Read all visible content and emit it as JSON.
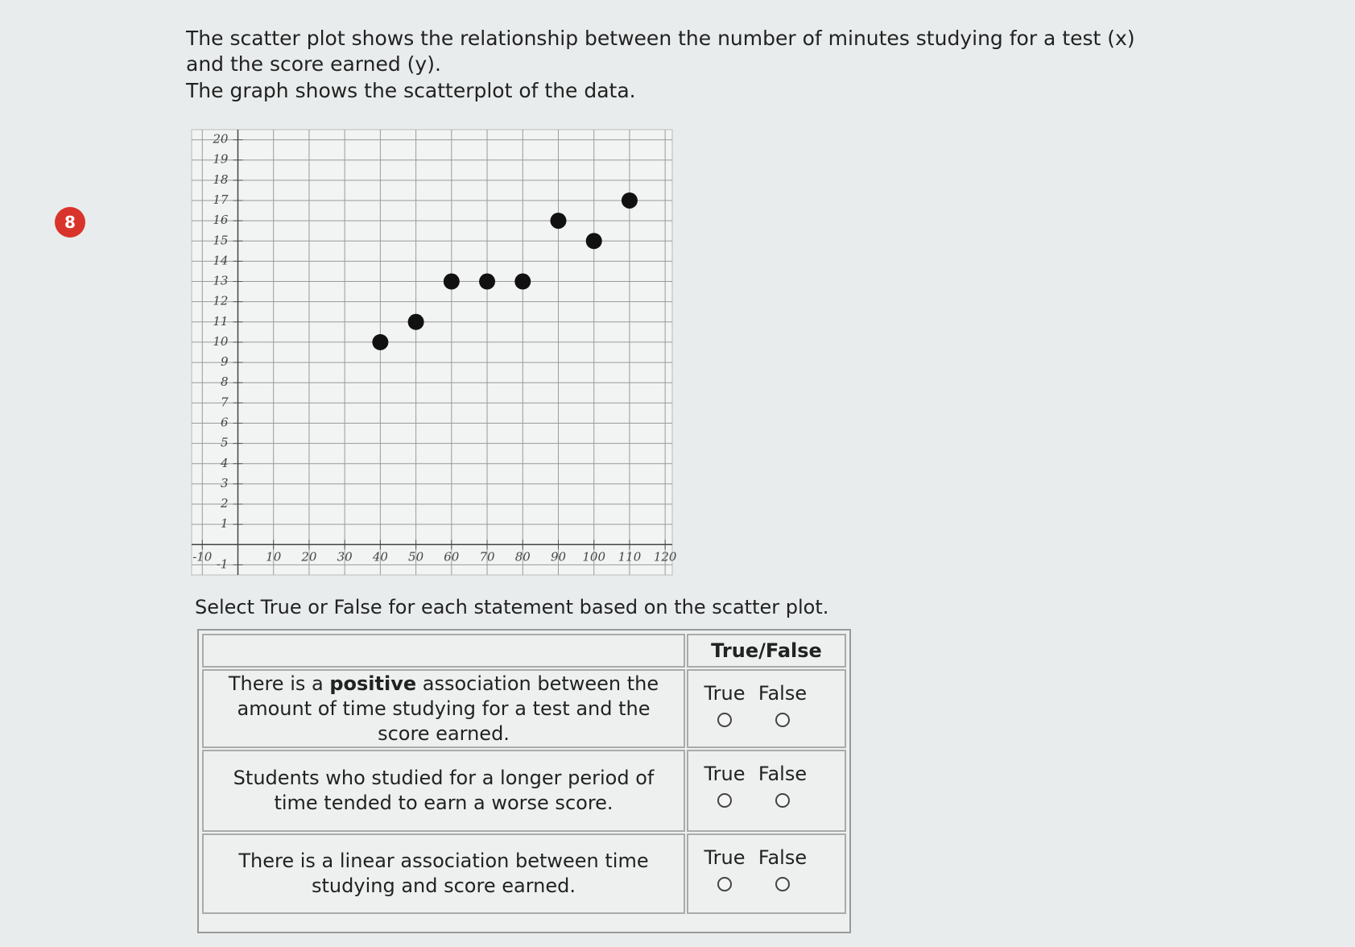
{
  "question": {
    "number": "8",
    "prompt": "The scatter plot shows the relationship between the number of minutes studying for a test (x) and the score earned (y).",
    "subprompt": "The graph shows the scatterplot of the data."
  },
  "chart_data": {
    "type": "scatter",
    "x": [
      40,
      50,
      60,
      70,
      80,
      90,
      100,
      110
    ],
    "series": [
      {
        "color": "#111111",
        "values": [
          10,
          11,
          13,
          13,
          13,
          16,
          15,
          17
        ]
      }
    ],
    "xlim": [
      -13,
      122
    ],
    "ylim": [
      -1.5,
      20.5
    ],
    "xticks": [
      -10,
      10,
      20,
      30,
      40,
      50,
      60,
      70,
      80,
      90,
      100,
      110,
      120
    ],
    "yticks": [
      -1,
      1,
      2,
      3,
      4,
      5,
      6,
      7,
      8,
      9,
      10,
      11,
      12,
      13,
      14,
      15,
      16,
      17,
      18,
      19,
      20
    ],
    "grid": true
  },
  "instructions": "Select True or False for each statement based on the scatter plot.",
  "table": {
    "header": "True/False",
    "rows": [
      {
        "statement": [
          "There is a ",
          "positive",
          " association between the amount of time studying for a test and the score earned."
        ],
        "options": [
          "True",
          "False"
        ]
      },
      {
        "statement": [
          "Students who studied for a longer period of time tended to earn a worse score."
        ],
        "options": [
          "True",
          "False"
        ]
      },
      {
        "statement": [
          "There is a linear association between time studying and score earned."
        ],
        "options": [
          "True",
          "False"
        ]
      }
    ]
  }
}
